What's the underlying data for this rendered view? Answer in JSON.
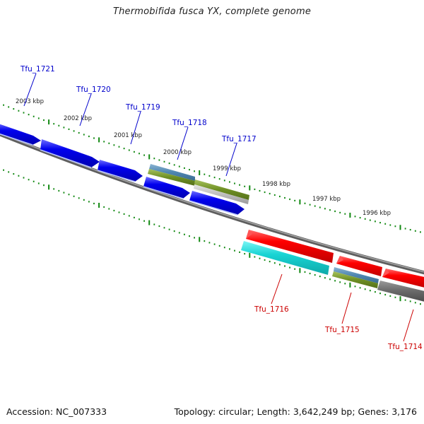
{
  "title": "Thermobifida fusca YX, complete genome",
  "footer": {
    "accession": "Accession: NC_007333",
    "summary": "Topology: circular; Length: 3,642,249 bp; Genes: 3,176"
  },
  "colors": {
    "forward_label": "#0000cc",
    "reverse_label": "#cc0000",
    "tick": "#118811",
    "backbone": "#808080"
  },
  "ruler_labels": [
    "2003 kbp",
    "2002 kbp",
    "2001 kbp",
    "2000 kbp",
    "1999 kbp",
    "1998 kbp",
    "1997 kbp",
    "1996 kbp"
  ],
  "genes": [
    {
      "id": "Tfu_1721",
      "strand": "+",
      "label": "Tfu_1721"
    },
    {
      "id": "Tfu_1720",
      "strand": "+",
      "label": "Tfu_1720"
    },
    {
      "id": "Tfu_1719",
      "strand": "+",
      "label": "Tfu_1719"
    },
    {
      "id": "Tfu_1718",
      "strand": "+",
      "label": "Tfu_1718"
    },
    {
      "id": "Tfu_1717",
      "strand": "+",
      "label": "Tfu_1717"
    },
    {
      "id": "Tfu_1716",
      "strand": "-",
      "label": "Tfu_1716"
    },
    {
      "id": "Tfu_1715",
      "strand": "-",
      "label": "Tfu_1715"
    },
    {
      "id": "Tfu_1714",
      "strand": "-",
      "label": "Tfu_1714"
    }
  ]
}
